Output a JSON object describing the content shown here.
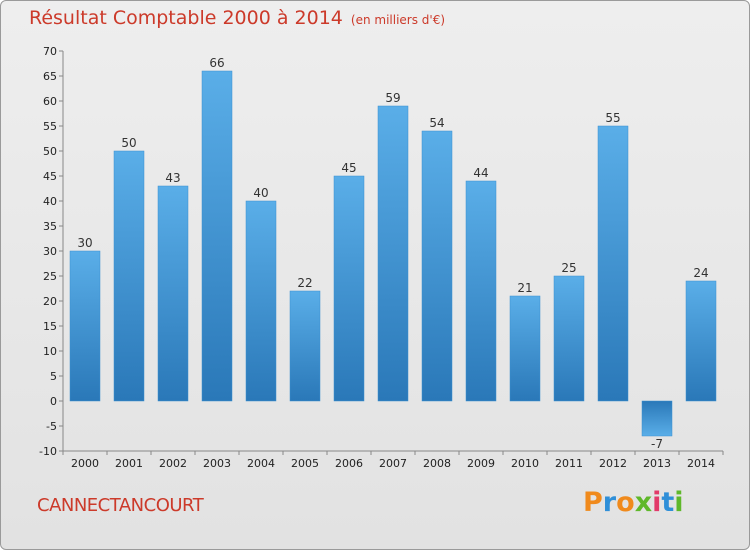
{
  "header": {
    "title": "Résultat Comptable 2000 à 2014",
    "subtitle": "(en milliers d'€)"
  },
  "footer": {
    "commune": "CANNECTANCOURT",
    "logo": {
      "letters": [
        "P",
        "r",
        "o",
        "x",
        "i",
        "t",
        "i"
      ],
      "colors": [
        "#f08a1c",
        "#2f8fd8",
        "#f08a1c",
        "#5fb82a",
        "#e23a6a",
        "#2f8fd8",
        "#5fb82a"
      ]
    }
  },
  "chart_data": {
    "type": "bar",
    "categories": [
      "2000",
      "2001",
      "2002",
      "2003",
      "2004",
      "2005",
      "2006",
      "2007",
      "2008",
      "2009",
      "2010",
      "2011",
      "2012",
      "2013",
      "2014"
    ],
    "values": [
      30,
      50,
      43,
      66,
      40,
      22,
      45,
      59,
      54,
      44,
      21,
      25,
      55,
      -7,
      24
    ],
    "data_labels": [
      "30",
      "50",
      "43",
      "66",
      "40",
      "22",
      "45",
      "59",
      "54",
      "44",
      "21",
      "25",
      "55",
      "-7",
      "24"
    ],
    "ylim": [
      -10,
      70
    ],
    "yticks": [
      -10,
      -5,
      0,
      5,
      10,
      15,
      20,
      25,
      30,
      35,
      40,
      45,
      50,
      55,
      60,
      65,
      70
    ],
    "grid": false,
    "colors": {
      "bar_light": "#5aaee8",
      "bar_dark": "#2a78b8",
      "axis": "#888888",
      "title": "#cc3a2a"
    }
  }
}
